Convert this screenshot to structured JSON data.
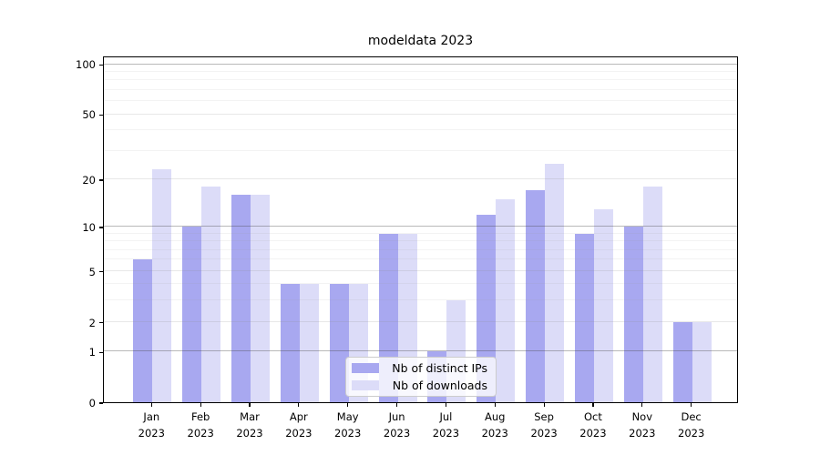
{
  "title": "modeldata 2023",
  "chart_data": {
    "type": "bar",
    "title": "modeldata 2023",
    "scale": "log1p-symlog",
    "categories": [
      "Jan",
      "Feb",
      "Mar",
      "Apr",
      "May",
      "Jun",
      "Jul",
      "Aug",
      "Sep",
      "Oct",
      "Nov",
      "Dec"
    ],
    "category_year_line": "2023",
    "series": [
      {
        "name": "Nb of distinct IPs",
        "color": "#a8a8f0",
        "values": [
          6,
          10,
          16,
          4,
          4,
          9,
          1,
          12,
          17,
          9,
          10,
          2
        ]
      },
      {
        "name": "Nb of downloads",
        "color": "#dcdcf8",
        "values": [
          23,
          18,
          16,
          4,
          4,
          9,
          3,
          15,
          25,
          13,
          18,
          2
        ]
      }
    ],
    "xlabel": "",
    "ylabel": "",
    "ylim": [
      0,
      112
    ],
    "y_ticks": [
      0,
      1,
      2,
      5,
      10,
      20,
      50,
      100
    ],
    "y_minor_gridlines": [
      3,
      4,
      6,
      7,
      8,
      9,
      30,
      40,
      60,
      70,
      80,
      90
    ],
    "grid": "on",
    "legend_position": "lower center",
    "colors": {
      "major_gridline": "#b4b4b4",
      "light_gridline": "#eaeaea",
      "minor_gridline": "#f2f2f2",
      "axis": "#000000",
      "background": "#ffffff"
    }
  }
}
